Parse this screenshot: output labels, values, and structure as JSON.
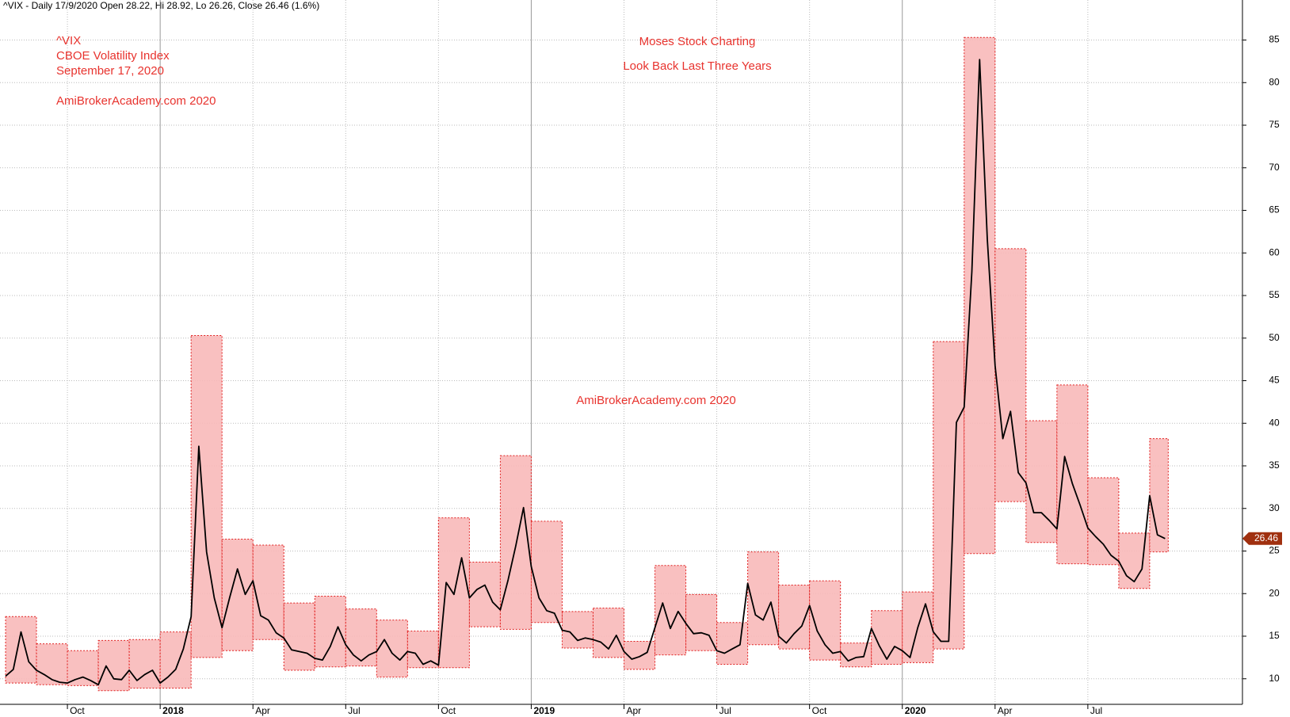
{
  "chart_data": {
    "type": "line",
    "header": "^VIX - Daily 17/9/2020 Open 28.22, Hi 28.92, Lo 26.26, Close 26.46 (1.6%)",
    "annotations_left": [
      "^VIX",
      "CBOE Volatility Index",
      "September 17, 2020",
      "AmiBrokerAcademy.com  2020"
    ],
    "annotations_top": [
      "Moses Stock Charting",
      "Look Back Last Three Years"
    ],
    "annotation_center": "AmiBrokerAcademy.com  2020",
    "annotation_color": "#e8332e",
    "last_close": 26.46,
    "last_close_color": "#a0300f",
    "xlim": [
      -0.18,
      40
    ],
    "ylim": [
      7,
      89.7
    ],
    "xticks": [
      {
        "value": 2,
        "label": "Oct"
      },
      {
        "value": 5,
        "label": "2018"
      },
      {
        "value": 8,
        "label": "Apr"
      },
      {
        "value": 11,
        "label": "Jul"
      },
      {
        "value": 14,
        "label": "Oct"
      },
      {
        "value": 17,
        "label": "2019"
      },
      {
        "value": 20,
        "label": "Apr"
      },
      {
        "value": 23,
        "label": "Jul"
      },
      {
        "value": 26,
        "label": "Oct"
      },
      {
        "value": 29,
        "label": "2020"
      },
      {
        "value": 32,
        "label": "Apr"
      },
      {
        "value": 35,
        "label": "Jul"
      }
    ],
    "yticks": [
      10,
      15,
      20,
      25,
      30,
      35,
      40,
      45,
      50,
      55,
      60,
      65,
      70,
      75,
      80,
      85
    ],
    "grid": true,
    "x": [
      0,
      0.25,
      0.5,
      0.75,
      1,
      1.25,
      1.5,
      1.75,
      2,
      2.25,
      2.5,
      2.75,
      3,
      3.25,
      3.5,
      3.75,
      4,
      4.25,
      4.5,
      4.75,
      5,
      5.25,
      5.5,
      5.75,
      6,
      6.25,
      6.5,
      6.75,
      7,
      7.25,
      7.5,
      7.75,
      8,
      8.25,
      8.5,
      8.75,
      9,
      9.25,
      9.5,
      9.75,
      10,
      10.25,
      10.5,
      10.75,
      11,
      11.25,
      11.5,
      11.75,
      12,
      12.25,
      12.5,
      12.75,
      13,
      13.25,
      13.5,
      13.75,
      14,
      14.25,
      14.5,
      14.75,
      15,
      15.25,
      15.5,
      15.75,
      16,
      16.25,
      16.5,
      16.75,
      17,
      17.25,
      17.5,
      17.75,
      18,
      18.25,
      18.5,
      18.75,
      19,
      19.25,
      19.5,
      19.75,
      20,
      20.25,
      20.5,
      20.75,
      21,
      21.25,
      21.5,
      21.75,
      22,
      22.25,
      22.5,
      22.75,
      23,
      23.25,
      23.5,
      23.75,
      24,
      24.25,
      24.5,
      24.75,
      25,
      25.25,
      25.5,
      25.75,
      26,
      26.25,
      26.5,
      26.75,
      27,
      27.25,
      27.5,
      27.75,
      28,
      28.25,
      28.5,
      28.75,
      29,
      29.25,
      29.5,
      29.75,
      30,
      30.25,
      30.5,
      30.75,
      31,
      31.25,
      31.5,
      31.75,
      32,
      32.25,
      32.5,
      32.75,
      33,
      33.25,
      33.5,
      33.75,
      34,
      34.25,
      34.5,
      34.75,
      35,
      35.25,
      35.5,
      35.75,
      36,
      36.25,
      36.5,
      36.75,
      37,
      37.25,
      37.5
    ],
    "series": [
      {
        "name": "^VIX",
        "color": "#000000",
        "values": [
          10.3,
          11.1,
          15.5,
          12.0,
          11.0,
          10.5,
          9.9,
          9.6,
          9.5,
          9.9,
          10.2,
          9.8,
          9.3,
          11.5,
          10.0,
          9.9,
          11.0,
          9.8,
          10.5,
          11.0,
          9.5,
          10.2,
          11.1,
          13.5,
          17.3,
          37.3,
          24.9,
          19.5,
          16.0,
          19.6,
          22.9,
          19.9,
          21.5,
          17.4,
          16.9,
          15.4,
          14.8,
          13.4,
          13.2,
          13.0,
          12.4,
          12.2,
          13.8,
          16.1,
          14.0,
          12.8,
          12.1,
          12.8,
          13.2,
          14.6,
          13.0,
          12.2,
          13.2,
          13.0,
          11.7,
          12.1,
          11.6,
          21.3,
          19.9,
          24.2,
          19.5,
          20.5,
          21.0,
          19.0,
          18.1,
          21.6,
          25.6,
          30.1,
          23.2,
          19.5,
          18.0,
          17.7,
          15.7,
          15.5,
          14.5,
          14.8,
          14.6,
          14.3,
          13.5,
          15.1,
          13.2,
          12.3,
          12.6,
          13.1,
          16.0,
          18.9,
          15.9,
          17.9,
          16.5,
          15.3,
          15.4,
          15.1,
          13.3,
          13.0,
          13.5,
          14.0,
          21.2,
          17.5,
          16.9,
          19.0,
          15.0,
          14.2,
          15.3,
          16.2,
          18.6,
          15.6,
          14.0,
          13.0,
          13.2,
          12.1,
          12.5,
          12.6,
          15.9,
          13.9,
          12.3,
          13.8,
          13.3,
          12.5,
          16.0,
          18.8,
          15.5,
          14.4,
          14.4,
          40.1,
          41.9,
          57.8,
          82.7,
          61.6,
          46.8,
          38.2,
          41.4,
          34.2,
          33.0,
          29.5,
          29.5,
          28.6,
          27.6,
          36.1,
          32.9,
          30.4,
          27.7,
          26.7,
          25.8,
          24.5,
          23.8,
          22.1,
          21.4,
          22.9,
          31.5,
          26.9,
          26.46
        ]
      }
    ],
    "boxes": {
      "color": "#f8b9b9",
      "edge": "#e02020",
      "x_start": [
        0,
        1,
        2,
        3,
        4,
        5,
        6,
        7,
        8,
        9,
        10,
        11,
        12,
        13,
        14,
        15,
        16,
        17,
        18,
        19,
        20,
        21,
        22,
        23,
        24,
        25,
        26,
        27,
        28,
        29,
        30,
        31,
        32,
        33,
        34,
        35,
        36,
        37
      ],
      "x_end": [
        1,
        2,
        3,
        4,
        5,
        6,
        7,
        8,
        9,
        10,
        11,
        12,
        13,
        14,
        15,
        16,
        17,
        18,
        19,
        20,
        21,
        22,
        23,
        24,
        25,
        26,
        27,
        28,
        29,
        30,
        31,
        32,
        33,
        34,
        35,
        36,
        37,
        37.6
      ],
      "low": [
        9.5,
        9.3,
        9.2,
        8.6,
        8.9,
        8.9,
        12.5,
        13.3,
        14.6,
        11.0,
        11.4,
        11.5,
        10.2,
        11.3,
        11.3,
        16.1,
        15.8,
        16.6,
        13.6,
        12.5,
        11.1,
        12.8,
        13.3,
        11.7,
        14.0,
        13.5,
        12.2,
        11.4,
        11.7,
        11.9,
        13.5,
        24.7,
        30.8,
        26.0,
        23.5,
        23.4,
        20.6,
        24.9
      ],
      "high": [
        17.3,
        14.1,
        13.3,
        14.5,
        14.6,
        15.5,
        50.3,
        26.4,
        25.7,
        18.9,
        19.7,
        18.2,
        16.9,
        15.6,
        28.9,
        23.7,
        36.2,
        28.5,
        17.9,
        18.3,
        14.4,
        23.3,
        19.9,
        16.6,
        24.9,
        21.0,
        21.5,
        14.2,
        18.0,
        20.2,
        49.6,
        85.3,
        60.5,
        40.3,
        44.5,
        33.6,
        27.1,
        38.2
      ]
    }
  }
}
